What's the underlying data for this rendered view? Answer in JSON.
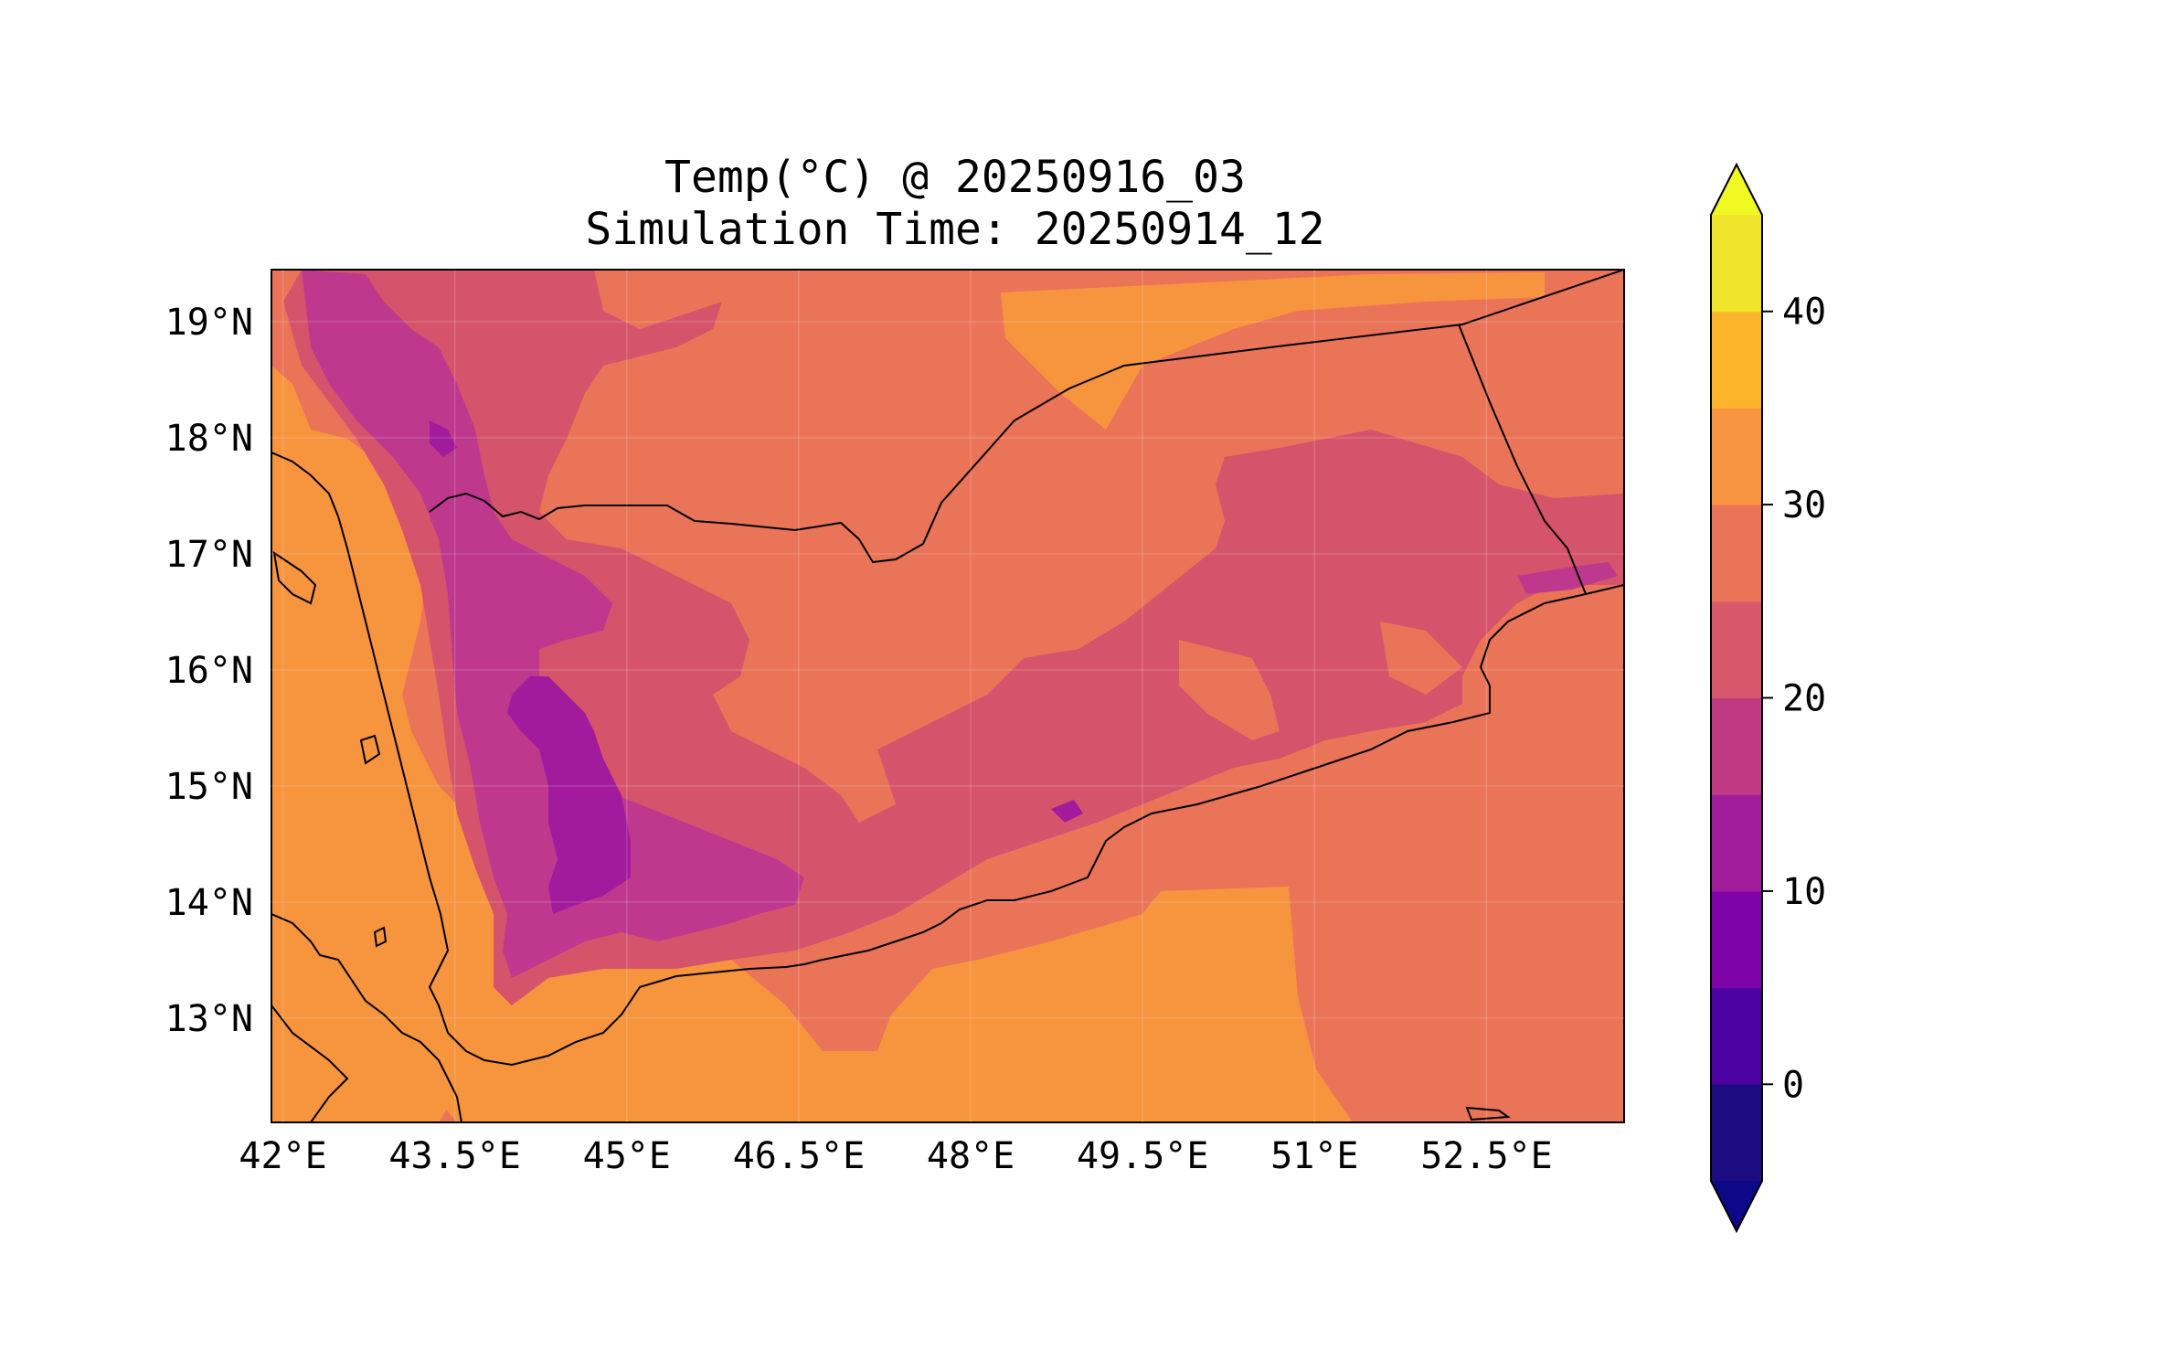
{
  "map": {
    "title_line1": "Temp(°C) @ 20250916_03",
    "title_line2": "Simulation Time: 20250914_12",
    "lon_ticks": [
      "42°E",
      "43.5°E",
      "45°E",
      "46.5°E",
      "48°E",
      "49.5°E",
      "51°E",
      "52.5°E"
    ],
    "lon_values": [
      42,
      43.5,
      45,
      46.5,
      48,
      49.5,
      51,
      52.5
    ],
    "lat_ticks": [
      "19°N",
      "18°N",
      "17°N",
      "16°N",
      "15°N",
      "14°N",
      "13°N"
    ],
    "lat_values": [
      19,
      18,
      17,
      16,
      15,
      14,
      13
    ],
    "extent": {
      "lon_min": 41.9,
      "lon_max": 53.7,
      "lat_min": 12.1,
      "lat_max": 19.45
    },
    "colors": {
      "land_warm": "#f7953f",
      "band_25_30": "#ea7458",
      "band_20_25": "#d5546b",
      "band_15_20": "#be398d",
      "band_10_15": "#a21b9c",
      "band_5_10": "#8b0aa5",
      "coast": "#000000"
    }
  },
  "colorbar": {
    "ticks": [
      "40",
      "30",
      "20",
      "10",
      "0"
    ],
    "tick_values": [
      40,
      30,
      20,
      10,
      0
    ],
    "levels": [
      -5,
      0,
      5,
      10,
      15,
      20,
      25,
      30,
      35,
      40,
      45
    ],
    "band_colors": [
      "#1b0c82",
      "#4c02a1",
      "#7e03a8",
      "#a21d9a",
      "#c03a83",
      "#d8576b",
      "#ea7457",
      "#f89540",
      "#fcb42b",
      "#f0e52a"
    ],
    "under_color": "#0d0887",
    "over_color": "#f0f921"
  }
}
